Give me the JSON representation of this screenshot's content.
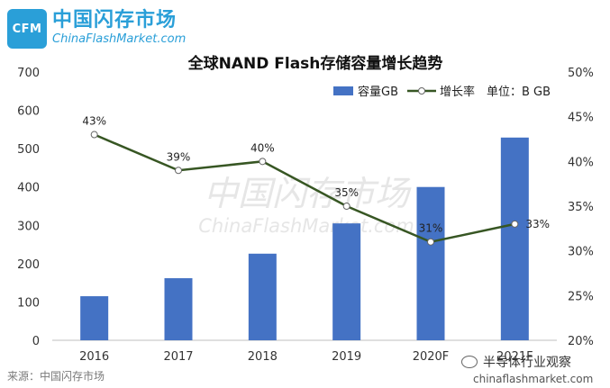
{
  "logo": {
    "badge": "CFM",
    "name_cn": "中国闪存市场",
    "name_en": "ChinaFlashMarket.com"
  },
  "source_label": "来源：中国闪存市场",
  "watermark": {
    "cn": "中国闪存市场",
    "en": "ChinaFlashMarket.com"
  },
  "wechat": "半导体行业观察",
  "site": "chinaflashmarket.com",
  "chart_data": {
    "type": "bar",
    "title": "全球NAND Flash存储容量增长趋势",
    "categories": [
      "2016",
      "2017",
      "2018",
      "2019",
      "2020F",
      "2021F"
    ],
    "series": [
      {
        "name": "容量GB",
        "type": "bar",
        "axis": "left",
        "values": [
          115,
          162,
          226,
          305,
          400,
          529
        ],
        "color": "#4472c4"
      },
      {
        "name": "增长率",
        "type": "line",
        "axis": "right",
        "values": [
          43,
          39,
          40,
          35,
          31,
          33
        ],
        "labels": [
          "43%",
          "39%",
          "40%",
          "35%",
          "31%",
          "33%"
        ],
        "color": "#375623"
      }
    ],
    "unit_note": "单位：B GB",
    "ylim_left": [
      0,
      700
    ],
    "yticks_left": [
      "0",
      "100",
      "200",
      "300",
      "400",
      "500",
      "600",
      "700"
    ],
    "ylim_right": [
      20,
      50
    ],
    "yticks_right": [
      "20%",
      "25%",
      "30%",
      "35%",
      "40%",
      "45%",
      "50%"
    ],
    "legend_position": "top-right",
    "grid": false
  }
}
